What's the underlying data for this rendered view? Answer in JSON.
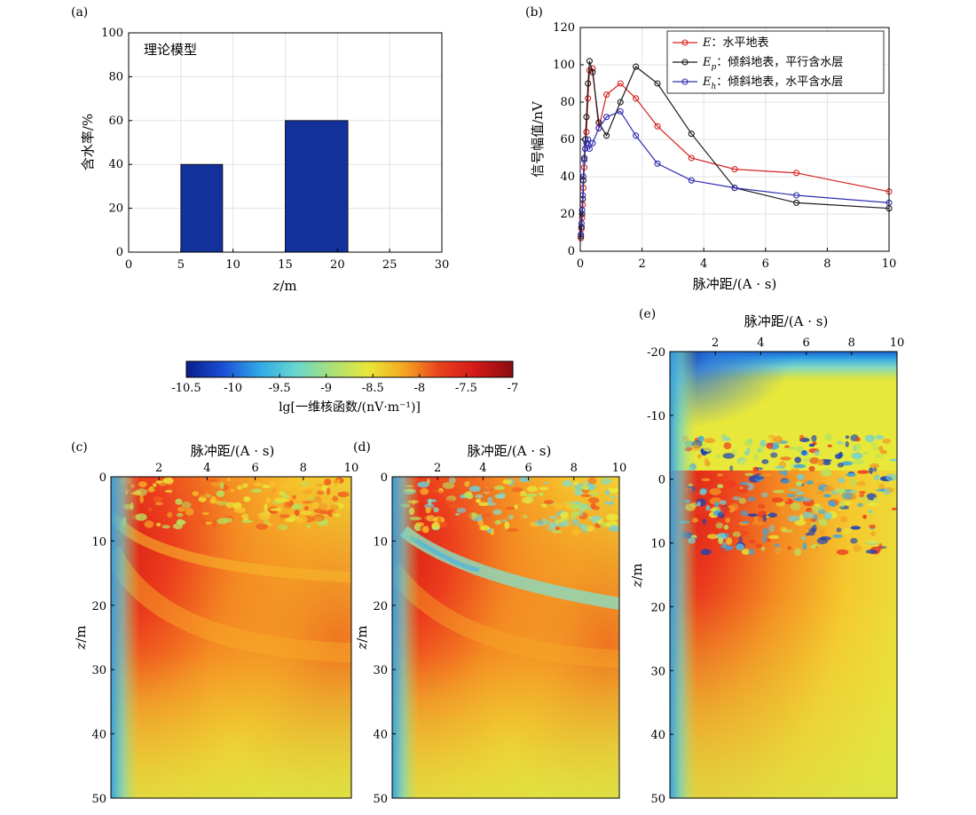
{
  "figure": {
    "panels": [
      "(a)",
      "(b)",
      "(c)",
      "(d)",
      "(e)"
    ]
  },
  "chart_data": [
    {
      "panel": "(a)",
      "type": "bar",
      "annotation": "理论模型",
      "xlabel": "z/m",
      "ylabel": "含水率/%",
      "xlim": [
        0,
        30
      ],
      "ylim": [
        0,
        100
      ],
      "xticks": [
        0,
        5,
        10,
        15,
        20,
        25,
        30
      ],
      "yticks": [
        0,
        20,
        40,
        60,
        80,
        100
      ],
      "grid": true,
      "bar_color": "#13319b",
      "bars": [
        {
          "x0": 5,
          "x1": 9,
          "value": 40
        },
        {
          "x0": 15,
          "x1": 21,
          "value": 60
        }
      ]
    },
    {
      "panel": "(b)",
      "type": "line",
      "xlabel": "脉冲距/(A · s)",
      "ylabel": "信号幅值/nV",
      "xlim": [
        0,
        10
      ],
      "ylim": [
        0,
        120
      ],
      "xticks": [
        0,
        2,
        4,
        6,
        8,
        10
      ],
      "yticks": [
        0,
        20,
        40,
        60,
        80,
        100,
        120
      ],
      "grid": true,
      "legend_position": "top-right",
      "series": [
        {
          "name": "E：水平地表",
          "legend_symbol": "E",
          "legend_sub": "",
          "legend_text": "：水平地表",
          "color": "#d62020",
          "x": [
            0.02,
            0.04,
            0.06,
            0.08,
            0.1,
            0.13,
            0.16,
            0.2,
            0.25,
            0.3,
            0.4,
            0.6,
            0.85,
            1.3,
            1.8,
            2.5,
            3.6,
            5.0,
            7.0,
            10.0
          ],
          "y": [
            7,
            12,
            18,
            25,
            34,
            45,
            55,
            64,
            82,
            97,
            98,
            66,
            84,
            90,
            82,
            67,
            50,
            44,
            42,
            32
          ]
        },
        {
          "name": "Ep：倾斜地表，平行含水层",
          "legend_symbol": "E",
          "legend_sub": "p",
          "legend_text": "：倾斜地表，平行含水层",
          "color": "#1a1a1a",
          "x": [
            0.02,
            0.04,
            0.06,
            0.08,
            0.1,
            0.13,
            0.16,
            0.2,
            0.25,
            0.3,
            0.4,
            0.6,
            0.85,
            1.3,
            1.8,
            2.5,
            3.6,
            5.0,
            7.0,
            10.0
          ],
          "y": [
            8,
            13,
            20,
            28,
            38,
            50,
            60,
            72,
            90,
            102,
            96,
            69,
            62,
            80,
            99,
            90,
            63,
            34,
            26,
            23
          ]
        },
        {
          "name": "Eh：倾斜地表，水平含水层",
          "legend_symbol": "E",
          "legend_sub": "h",
          "legend_text": "：倾斜地表，水平含水层",
          "color": "#2d2db0",
          "x": [
            0.02,
            0.04,
            0.06,
            0.08,
            0.1,
            0.13,
            0.16,
            0.2,
            0.25,
            0.3,
            0.4,
            0.6,
            0.85,
            1.3,
            1.8,
            2.5,
            3.6,
            5.0,
            7.0,
            10.0
          ],
          "y": [
            9,
            15,
            22,
            30,
            40,
            49,
            55,
            58,
            60,
            55,
            58,
            66,
            72,
            75,
            62,
            47,
            38,
            34,
            30,
            26
          ]
        }
      ]
    },
    {
      "panel": "colorbar",
      "type": "heatmap",
      "xlabel": "lg[一维核函数/(nV·m⁻¹)]",
      "xlim": [
        -10.5,
        -7
      ],
      "xticks": [
        -10.5,
        -10,
        -9.5,
        -9,
        -8.5,
        -8,
        -7.5,
        -7
      ],
      "colormap": [
        "#0b1e8a",
        "#1a4ed6",
        "#2fa7e6",
        "#66d6d0",
        "#a8e07a",
        "#e8e838",
        "#f5a623",
        "#e8401c",
        "#d11818",
        "#8a0d10"
      ]
    },
    {
      "panel": "(c)",
      "type": "heatmap",
      "xlabel": "脉冲距/(A · s)",
      "ylabel": "z/m",
      "xlim": [
        0,
        10
      ],
      "ylim": [
        50,
        0
      ],
      "xticks": [
        2,
        4,
        6,
        8,
        10
      ],
      "yticks": [
        0,
        10,
        20,
        30,
        40,
        50
      ]
    },
    {
      "panel": "(d)",
      "type": "heatmap",
      "xlabel": "脉冲距/(A · s)",
      "ylabel": "z/m",
      "xlim": [
        0,
        10
      ],
      "ylim": [
        50,
        0
      ],
      "xticks": [
        2,
        4,
        6,
        8,
        10
      ],
      "yticks": [
        0,
        10,
        20,
        30,
        40,
        50
      ]
    },
    {
      "panel": "(e)",
      "type": "heatmap",
      "xlabel": "脉冲距/(A · s)",
      "ylabel": "z/m",
      "xlim": [
        0,
        10
      ],
      "ylim": [
        50,
        -20
      ],
      "xticks": [
        2,
        4,
        6,
        8,
        10
      ],
      "yticks": [
        -20,
        -10,
        0,
        10,
        20,
        30,
        40,
        50
      ]
    }
  ]
}
